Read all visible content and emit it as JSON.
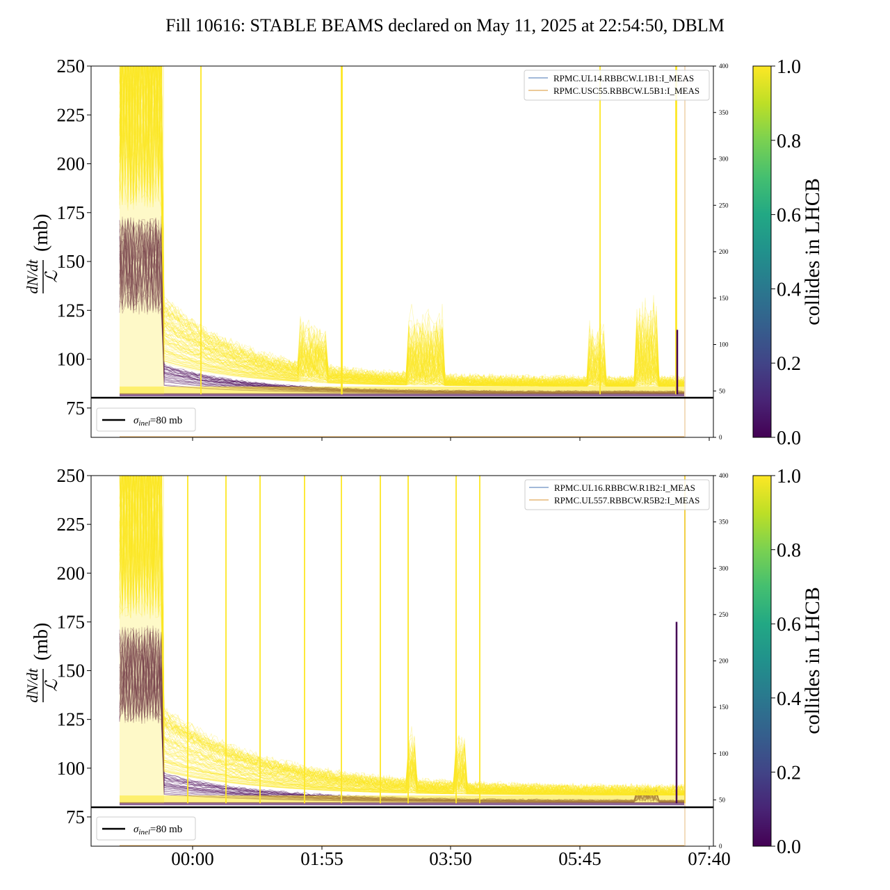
{
  "title": "Fill 10616: STABLE BEAMS declared on May 11, 2025 at 22:54:50, DBLM",
  "x_ticks": [
    "00:00",
    "01:55",
    "03:50",
    "05:45",
    "07:40"
  ],
  "sigma_legend": {
    "label": "=80 mb",
    "sigma": "σ",
    "sub": "inel"
  },
  "colorbar": {
    "label": "collides in LHCB",
    "ticks": [
      "0.0",
      "0.2",
      "0.4",
      "0.6",
      "0.8",
      "1.0"
    ]
  },
  "colors": {
    "high": "#fde725",
    "low": "#440154",
    "blm_b1": "#6a8fc2",
    "blm_b2": "#e0a95a",
    "sigma_line": "#000000"
  },
  "ylabel": {
    "num": "dN/dt",
    "den": "ℒ",
    "unit": "(mb)"
  },
  "chart_data": [
    {
      "type": "line",
      "panel": "top",
      "ylim": [
        60,
        250
      ],
      "y_ticks": [
        75,
        100,
        125,
        150,
        175,
        200,
        225,
        250
      ],
      "y2lim": [
        0,
        400
      ],
      "y2_ticks": [
        0,
        50,
        100,
        150,
        200,
        250,
        300,
        350,
        400
      ],
      "sigma_inel": 80,
      "legend": [
        "RPMC.UL14.RBBCW.L1B1:I_MEAS",
        "RPMC.USC55.RBBCW.L5B1:I_MEAS"
      ],
      "colorbar_range": [
        0,
        1
      ]
    },
    {
      "type": "line",
      "panel": "bottom",
      "ylim": [
        60,
        250
      ],
      "y_ticks": [
        75,
        100,
        125,
        150,
        175,
        200,
        225,
        250
      ],
      "y2lim": [
        0,
        400
      ],
      "y2_ticks": [
        0,
        50,
        100,
        150,
        200,
        250,
        300,
        350,
        400
      ],
      "sigma_inel": 80,
      "legend": [
        "RPMC.UL16.RBBCW.R1B2:I_MEAS",
        "RPMC.UL557.RBBCW.R5B2:I_MEAS"
      ],
      "colorbar_range": [
        0,
        1
      ]
    }
  ]
}
